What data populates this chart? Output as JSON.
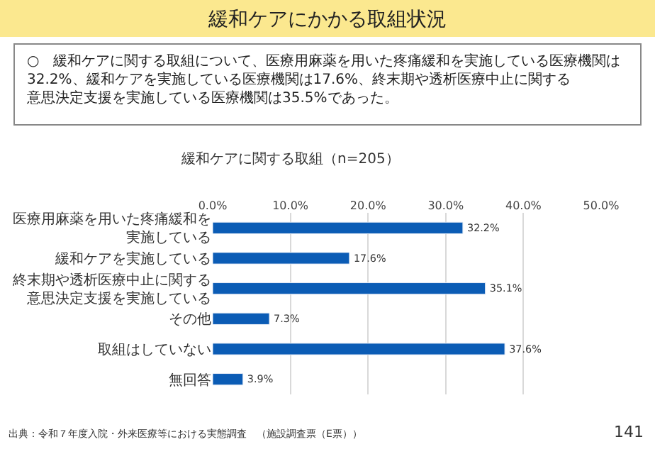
{
  "chart_data": {
    "type": "bar",
    "orientation": "horizontal",
    "title": "緩和ケアにかかる取組状況",
    "subtitle": "○　緩和ケアに関する取組について、医療用麻薬を用いた疼痛緩和を実施している医療機関は32.2%、緩和ケアを実施している医療機関は17.6%、終末期や透析医療中止に関する意思決定支援を実施している医療機関は35.5%であった。",
    "xlabel": "緩和ケアに関する取組（n=205）",
    "categories": [
      "医療用麻薬を用いた疼痛緩和を実施している",
      "緩和ケアを実施している",
      "終末期や透析医療中止に関する意思決定支援を実施している",
      "その他",
      "取組はしていない",
      "無回答"
    ],
    "values": [
      32.2,
      17.6,
      35.1,
      7.3,
      37.6,
      3.9
    ],
    "value_labels": [
      "32.2%",
      "17.6%",
      "35.1%",
      "7.3%",
      "37.6%",
      "3.9%"
    ],
    "color": "#0b5cb5",
    "xlim": [
      0,
      50
    ],
    "xticks": [
      {
        "value": 0,
        "label": "0.0%"
      },
      {
        "value": 10,
        "label": "10.0%"
      },
      {
        "value": 20,
        "label": "20.0%"
      },
      {
        "value": 30,
        "label": "30.0%"
      },
      {
        "value": 40,
        "label": "40.0%"
      },
      {
        "value": 50,
        "label": "50.0%"
      }
    ],
    "grid": "x",
    "legend": false,
    "annotations": [
      "出典：令和７年度入院・外来医療等における実態調査　（施設調査票（E票））",
      "141"
    ]
  }
}
